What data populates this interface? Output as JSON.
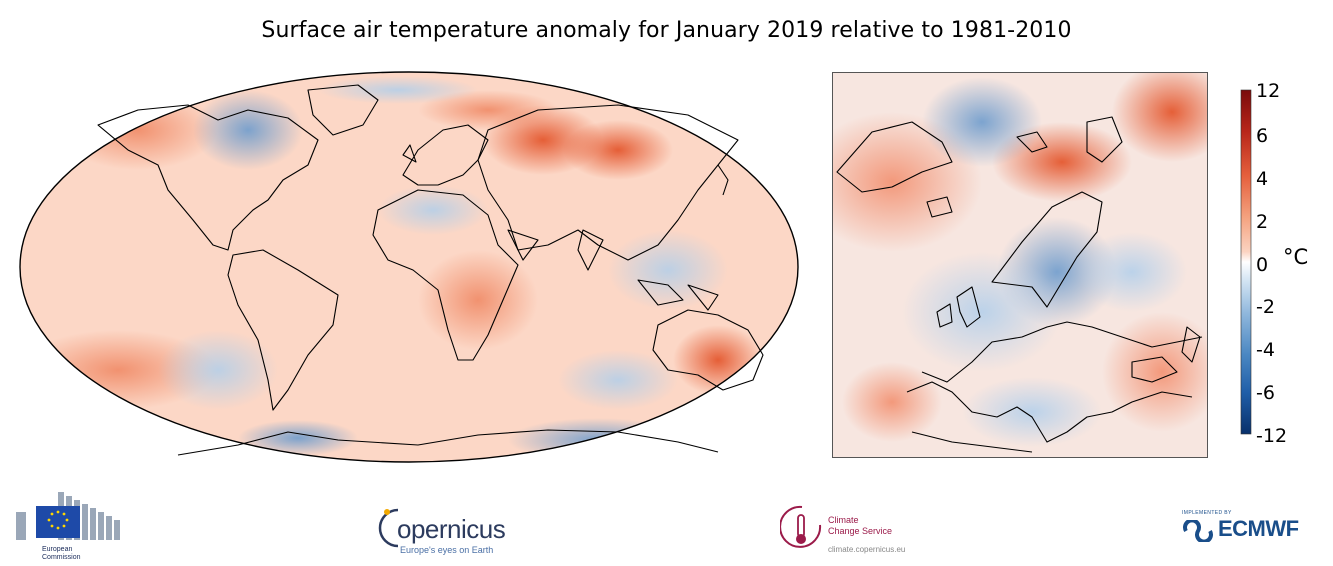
{
  "title": "Surface air temperature anomaly for January 2019 relative to 1981-2010",
  "colorbar": {
    "unit": "°C",
    "ticks": [
      "12",
      "6",
      "4",
      "2",
      "0",
      "-2",
      "-4",
      "-6",
      "-12"
    ],
    "colors": [
      "#08306b",
      "#1f5ea8",
      "#4a87c2",
      "#8fb7dc",
      "#d6e6f4",
      "#ffffff",
      "#fbd3c1",
      "#f4a27f",
      "#e5603d",
      "#b8261a",
      "#7a0b0b"
    ]
  },
  "logos": {
    "ec_line1": "European",
    "ec_line2": "Commission",
    "copernicus_main": "opernicus",
    "copernicus_sub": "Europe's eyes on Earth",
    "c3s_line1": "Climate",
    "c3s_line2": "Change Service",
    "c3s_url": "climate.copernicus.eu",
    "ecmwf_small": "IMPLEMENTED BY",
    "ecmwf_main": "ECMWF"
  }
}
